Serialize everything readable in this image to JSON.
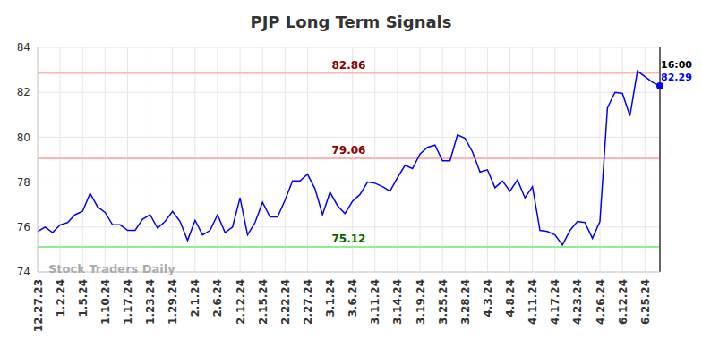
{
  "chart_data": {
    "type": "line",
    "title": "PJP Long Term Signals",
    "watermark": "Stock Traders Daily",
    "color": "#0000ff",
    "grid": true,
    "categories": [
      "12.27.23",
      null,
      null,
      "1.2.24",
      null,
      null,
      "1.5.24",
      null,
      null,
      "1.10.24",
      null,
      null,
      "1.17.24",
      null,
      null,
      "1.23.24",
      null,
      null,
      "1.29.24",
      null,
      null,
      "2.1.24",
      null,
      null,
      "2.6.24",
      null,
      null,
      "2.12.24",
      null,
      null,
      "2.15.24",
      null,
      null,
      "2.22.24",
      null,
      null,
      "2.27.24",
      null,
      null,
      "3.1.24",
      null,
      null,
      "3.6.24",
      null,
      null,
      "3.11.24",
      null,
      null,
      "3.14.24",
      null,
      null,
      "3.19.24",
      null,
      null,
      "3.25.24",
      null,
      null,
      "3.28.24",
      null,
      null,
      "4.3.24",
      null,
      null,
      "4.8.24",
      null,
      null,
      "4.11.24",
      null,
      null,
      "4.17.24",
      null,
      null,
      "4.23.24",
      null,
      null,
      "4.26.24",
      null,
      null,
      "6.12.24",
      null,
      null,
      "6.25.24",
      null,
      null
    ],
    "values": [
      75.8,
      76.0,
      75.75,
      76.1,
      76.2,
      76.55,
      76.7,
      77.5,
      76.9,
      76.65,
      76.1,
      76.1,
      75.85,
      75.85,
      76.35,
      76.55,
      75.95,
      76.25,
      76.7,
      76.25,
      75.4,
      76.3,
      75.65,
      75.85,
      76.55,
      75.75,
      76.0,
      77.3,
      75.65,
      76.2,
      77.1,
      76.45,
      76.45,
      77.2,
      78.05,
      78.05,
      78.35,
      77.7,
      76.55,
      77.55,
      76.95,
      76.6,
      77.15,
      77.45,
      78.0,
      77.95,
      77.8,
      77.6,
      78.2,
      78.75,
      78.6,
      79.25,
      79.55,
      79.65,
      78.95,
      78.95,
      80.1,
      79.95,
      79.35,
      78.45,
      78.55,
      77.75,
      78.05,
      77.6,
      78.1,
      77.3,
      77.8,
      75.85,
      75.8,
      75.65,
      75.2,
      75.85,
      76.25,
      76.2,
      75.5,
      76.25,
      81.3,
      82.0,
      81.95,
      80.95,
      82.95,
      82.7,
      82.45,
      82.29
    ],
    "ylim": [
      74,
      84
    ],
    "yticks": [
      74,
      76,
      78,
      80,
      82,
      84
    ],
    "last_time": "16:00",
    "signals": [
      {
        "value": 82.86,
        "color": "#ffb3b3",
        "label_color": "#8b0000"
      },
      {
        "value": 79.06,
        "color": "#ffb3b3",
        "label_color": "#8b0000"
      },
      {
        "value": 75.12,
        "color": "#90ee90",
        "label_color": "#006400"
      }
    ]
  }
}
